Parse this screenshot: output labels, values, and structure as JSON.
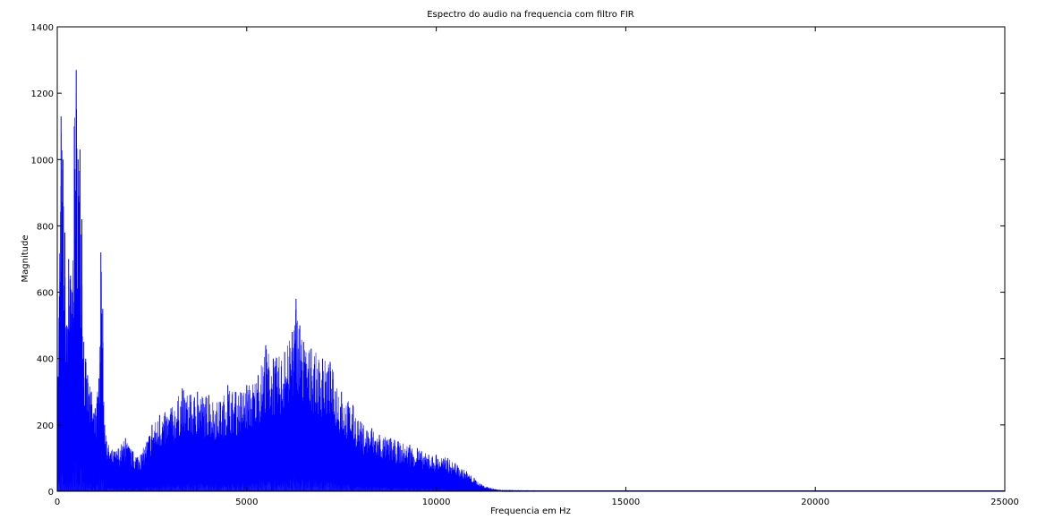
{
  "chart_data": {
    "type": "area",
    "title": "Espectro do audio na frequencia com filtro FIR",
    "xlabel": "Frequencia em Hz",
    "ylabel": "Magnitude",
    "xlim": [
      0,
      25000
    ],
    "ylim": [
      0,
      1400
    ],
    "xticks": [
      0,
      5000,
      10000,
      15000,
      20000,
      25000
    ],
    "xtick_labels": [
      "0",
      "5000",
      "10000",
      "15000",
      "20000",
      "25000"
    ],
    "yticks": [
      0,
      200,
      400,
      600,
      800,
      1000,
      1200,
      1400
    ],
    "ytick_labels": [
      "0",
      "200",
      "400",
      "600",
      "800",
      "1000",
      "1200",
      "1400"
    ],
    "grid": false,
    "legend": "none",
    "line_color": "#0000ff",
    "fill_color": "#0000ff",
    "series": [
      {
        "x": [
          0,
          100,
          150,
          200,
          250,
          300,
          350,
          400,
          450,
          500,
          550,
          600,
          650,
          700,
          750,
          800,
          900,
          1000,
          1100,
          1150,
          1200,
          1250,
          1300,
          1500,
          1800,
          2000,
          2200,
          2500,
          2700,
          3000,
          3300,
          3500,
          3700,
          4000,
          4300,
          4500,
          4700,
          5000,
          5300,
          5500,
          5700,
          6000,
          6200,
          6300,
          6400,
          6500,
          6700,
          7000,
          7200,
          7500,
          7800,
          8000,
          8300,
          8500,
          8800,
          9000,
          9300,
          9500,
          9800,
          10000,
          10300,
          10500,
          10800,
          11000,
          11200,
          11500,
          11800,
          12000,
          13000,
          15000,
          20000,
          25000
        ],
        "y": [
          200,
          1130,
          1000,
          780,
          500,
          700,
          650,
          600,
          1100,
          1270,
          1000,
          1030,
          820,
          450,
          400,
          350,
          300,
          250,
          340,
          720,
          550,
          200,
          150,
          120,
          160,
          120,
          110,
          200,
          230,
          250,
          310,
          290,
          300,
          290,
          270,
          320,
          300,
          320,
          350,
          440,
          400,
          420,
          480,
          580,
          500,
          450,
          430,
          400,
          390,
          300,
          260,
          210,
          190,
          170,
          160,
          150,
          140,
          130,
          110,
          110,
          100,
          85,
          60,
          40,
          20,
          8,
          3,
          2,
          1,
          0,
          0,
          0
        ]
      }
    ]
  }
}
